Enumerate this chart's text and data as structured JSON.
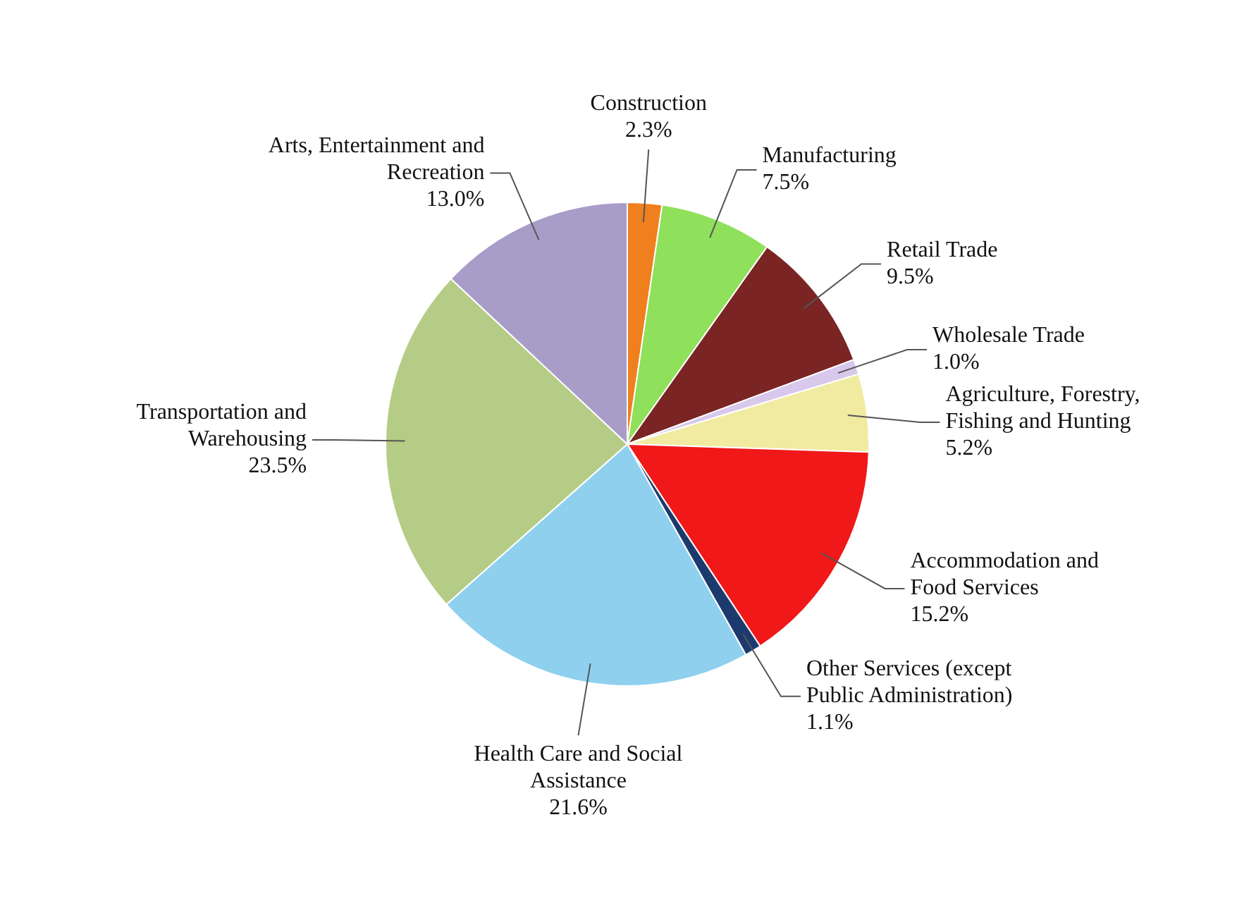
{
  "chart_data": {
    "type": "pie",
    "categories": [
      "Construction",
      "Manufacturing",
      "Retail Trade",
      "Wholesale Trade",
      "Agriculture, Forestry, Fishing and Hunting",
      "Accommodation and Food Services",
      "Other Services (except Public Administration)",
      "Health Care and Social Assistance",
      "Transportation and Warehousing",
      "Arts, Entertainment and Recreation"
    ],
    "values": [
      2.3,
      7.5,
      9.5,
      1.0,
      5.2,
      15.2,
      1.1,
      21.6,
      23.5,
      13.0
    ],
    "value_labels": [
      "2.3%",
      "7.5%",
      "9.5%",
      "1.0%",
      "5.2%",
      "15.2%",
      "1.1%",
      "21.6%",
      "23.5%",
      "13.0%"
    ],
    "colors": [
      "#f07f1e",
      "#8fe05a",
      "#7a2424",
      "#d8c8ec",
      "#f0eba0",
      "#f01818",
      "#1c3a6e",
      "#8fd0ee",
      "#b5cc86",
      "#a89cc8"
    ],
    "legend": false
  }
}
